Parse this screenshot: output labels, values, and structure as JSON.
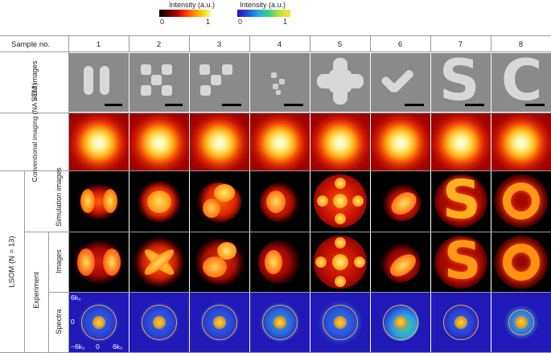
{
  "colorbars": {
    "hot": {
      "title": "Intensity (a.u.)",
      "min": "0",
      "max": "1"
    },
    "spectral": {
      "title": "Intensity (a.u.)",
      "min": "0",
      "max": "1"
    }
  },
  "header": {
    "sample_label": "Sample no.",
    "columns": [
      "1",
      "2",
      "3",
      "4",
      "5",
      "6",
      "7",
      "8"
    ]
  },
  "rows": {
    "sem": "SEM images",
    "conventional": "Conventional imaging (NA = 0.3)",
    "lsom": "LSOM (N = 13)",
    "simulation": "Simulation images",
    "experiment": "Experiment",
    "images": "Images",
    "spectra": "Spectra"
  },
  "spectra_axes": {
    "y_top": "6k₀",
    "y_mid": "0",
    "x_left": "−6k₀",
    "x_mid": "0",
    "x_right": "6k₀"
  },
  "colors": {
    "hot_dark": "#8a0000",
    "hot_bright": "#ffffe0",
    "spectral_low": "#2118b8",
    "spectral_high": "#ffe040",
    "sem_gray": "#8a8a8a"
  }
}
